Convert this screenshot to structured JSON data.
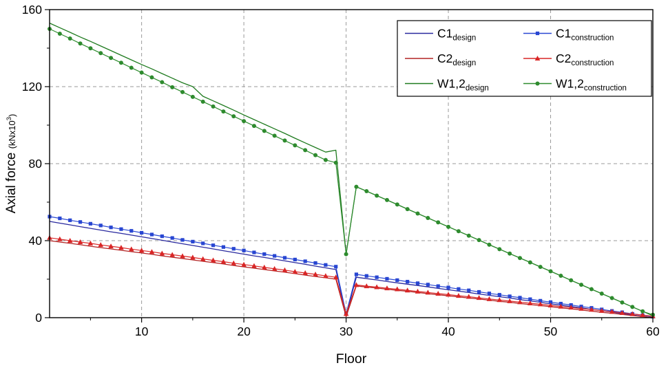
{
  "figure": {
    "background": "#ffffff"
  },
  "chart_data": {
    "type": "line",
    "title": "",
    "xlabel": "Floor",
    "ylabel": {
      "text": "Axial force",
      "unit_prefix": "(kNx10",
      "unit_sup": "3",
      "unit_suffix": ")"
    },
    "xlim": [
      1,
      60
    ],
    "ylim": [
      0,
      160
    ],
    "axes": {
      "xticks": [
        10,
        20,
        30,
        40,
        50,
        60
      ],
      "yticks": [
        0,
        40,
        80,
        120,
        160
      ],
      "x_minor": [
        5,
        15,
        25,
        35,
        45,
        55
      ],
      "y_minor": [
        20,
        60,
        100,
        140
      ],
      "x_grid": [
        10,
        20,
        30,
        40,
        50
      ],
      "y_grid": [
        40,
        80,
        120
      ],
      "grid_style": "dashed",
      "grid_color": "#9a9a9a"
    },
    "legend": {
      "position": "top-right",
      "columns": 2
    },
    "x": [
      1,
      2,
      3,
      4,
      5,
      6,
      7,
      8,
      9,
      10,
      11,
      12,
      13,
      14,
      15,
      16,
      17,
      18,
      19,
      20,
      21,
      22,
      23,
      24,
      25,
      26,
      27,
      28,
      29,
      30,
      31,
      32,
      33,
      34,
      35,
      36,
      37,
      38,
      39,
      40,
      41,
      42,
      43,
      44,
      45,
      46,
      47,
      48,
      49,
      50,
      51,
      52,
      53,
      54,
      55,
      56,
      57,
      58,
      59,
      60
    ],
    "series": [
      {
        "id": "C1_design",
        "label": {
          "main": "C1",
          "sub": "design"
        },
        "color": "#28289e",
        "marker": "none",
        "values": [
          50.0,
          49.1,
          48.2,
          47.3,
          46.4,
          45.5,
          44.6,
          43.8,
          42.9,
          42.0,
          41.1,
          40.2,
          39.3,
          38.4,
          37.5,
          36.6,
          35.7,
          34.8,
          33.9,
          33.0,
          32.1,
          31.3,
          30.4,
          29.5,
          28.6,
          27.7,
          26.8,
          25.9,
          25.0,
          1.0,
          21.0,
          20.3,
          19.6,
          18.8,
          18.1,
          17.4,
          16.7,
          16.0,
          15.2,
          14.5,
          13.8,
          13.1,
          12.3,
          11.6,
          10.9,
          10.2,
          9.4,
          8.7,
          8.0,
          7.2,
          6.5,
          5.8,
          5.1,
          4.3,
          3.6,
          2.9,
          2.2,
          1.4,
          0.7,
          0.0
        ]
      },
      {
        "id": "C1_construction",
        "label": {
          "main": "C1",
          "sub": "construction"
        },
        "color": "#2846d2",
        "marker": "square",
        "values": [
          52.5,
          51.6,
          50.6,
          49.7,
          48.8,
          47.9,
          46.9,
          46.0,
          45.1,
          44.1,
          43.2,
          42.3,
          41.4,
          40.4,
          39.5,
          38.6,
          37.6,
          36.7,
          35.8,
          34.9,
          33.9,
          33.0,
          32.1,
          31.1,
          30.2,
          29.3,
          28.4,
          27.4,
          26.5,
          2.0,
          22.5,
          21.7,
          21.0,
          20.2,
          19.5,
          18.7,
          17.9,
          17.2,
          16.4,
          15.7,
          14.9,
          14.2,
          13.4,
          12.6,
          11.9,
          11.1,
          10.4,
          9.6,
          8.8,
          8.1,
          7.3,
          6.6,
          5.8,
          5.1,
          4.3,
          3.5,
          2.8,
          2.0,
          1.3,
          0.5
        ]
      },
      {
        "id": "C2_design",
        "label": {
          "main": "C2",
          "sub": "design"
        },
        "color": "#b22222",
        "marker": "none",
        "values": [
          40.0,
          39.3,
          38.6,
          37.9,
          37.1,
          36.4,
          35.7,
          35.0,
          34.3,
          33.6,
          32.9,
          32.1,
          31.4,
          30.7,
          30.0,
          29.3,
          28.6,
          27.9,
          27.1,
          26.4,
          25.7,
          25.0,
          24.3,
          23.6,
          22.9,
          22.1,
          21.4,
          20.7,
          20.0,
          0.5,
          16.5,
          15.9,
          15.4,
          14.8,
          14.2,
          13.7,
          13.1,
          12.5,
          11.9,
          11.4,
          10.8,
          10.2,
          9.7,
          9.1,
          8.5,
          8.0,
          7.4,
          6.8,
          6.3,
          5.7,
          5.1,
          4.6,
          4.0,
          3.4,
          2.8,
          2.3,
          1.7,
          1.1,
          0.6,
          0.0
        ]
      },
      {
        "id": "C2_construction",
        "label": {
          "main": "C2",
          "sub": "construction"
        },
        "color": "#d92626",
        "marker": "triangle",
        "values": [
          41.5,
          40.8,
          40.0,
          39.3,
          38.6,
          37.8,
          37.1,
          36.4,
          35.6,
          34.9,
          34.2,
          33.4,
          32.7,
          32.0,
          31.3,
          30.5,
          29.8,
          29.1,
          28.3,
          27.6,
          26.9,
          26.1,
          25.4,
          24.7,
          23.9,
          23.2,
          22.5,
          21.7,
          21.0,
          2.0,
          17.0,
          16.4,
          15.9,
          15.3,
          14.8,
          14.2,
          13.6,
          13.1,
          12.5,
          12.0,
          11.4,
          10.9,
          10.3,
          9.7,
          9.2,
          8.6,
          8.1,
          7.5,
          7.0,
          6.4,
          5.8,
          5.3,
          4.7,
          4.2,
          3.6,
          3.1,
          2.5,
          1.9,
          1.4,
          0.8
        ]
      },
      {
        "id": "W12_design",
        "label": {
          "main": "W1,2",
          "sub": "design"
        },
        "color": "#1e7a1e",
        "marker": "none",
        "values": [
          153.0,
          150.6,
          148.2,
          145.8,
          143.5,
          141.1,
          138.7,
          136.3,
          133.9,
          131.5,
          129.2,
          126.8,
          124.4,
          122.0,
          120.0,
          115.0,
          112.6,
          110.2,
          107.8,
          105.3,
          102.9,
          100.5,
          98.1,
          95.7,
          93.2,
          90.8,
          88.4,
          86.0,
          87.0,
          33.0,
          68.0,
          65.7,
          63.4,
          61.1,
          58.8,
          56.4,
          54.1,
          51.8,
          49.5,
          47.2,
          44.9,
          42.6,
          40.3,
          37.9,
          35.6,
          33.3,
          31.0,
          28.7,
          26.4,
          24.1,
          21.8,
          19.4,
          17.1,
          14.8,
          12.5,
          10.2,
          7.9,
          5.6,
          3.3,
          1.0
        ]
      },
      {
        "id": "W12_construction",
        "label": {
          "main": "W1,2",
          "sub": "construction"
        },
        "color": "#2e8b2e",
        "marker": "circle",
        "values": [
          150.0,
          147.5,
          145.0,
          142.4,
          139.9,
          137.4,
          134.9,
          132.4,
          129.8,
          127.3,
          124.8,
          122.3,
          119.7,
          117.2,
          114.7,
          112.2,
          109.7,
          107.1,
          104.6,
          102.1,
          99.6,
          97.0,
          94.5,
          92.0,
          89.5,
          87.0,
          84.4,
          81.9,
          80.5,
          33.0,
          68.0,
          65.7,
          63.4,
          61.1,
          58.8,
          56.4,
          54.1,
          51.8,
          49.5,
          47.2,
          44.9,
          42.6,
          40.3,
          37.9,
          35.6,
          33.3,
          31.0,
          28.7,
          26.4,
          24.1,
          21.8,
          19.4,
          17.1,
          14.8,
          12.5,
          10.2,
          7.9,
          5.6,
          3.3,
          1.5
        ]
      }
    ]
  }
}
